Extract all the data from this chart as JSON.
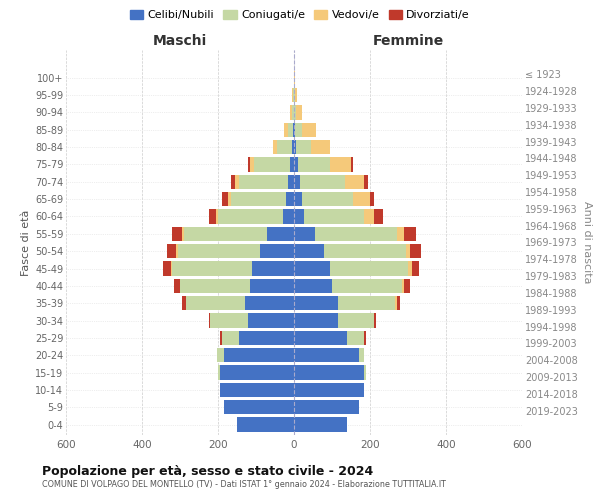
{
  "age_groups": [
    "0-4",
    "5-9",
    "10-14",
    "15-19",
    "20-24",
    "25-29",
    "30-34",
    "35-39",
    "40-44",
    "45-49",
    "50-54",
    "55-59",
    "60-64",
    "65-69",
    "70-74",
    "75-79",
    "80-84",
    "85-89",
    "90-94",
    "95-99",
    "100+"
  ],
  "birth_years": [
    "2019-2023",
    "2014-2018",
    "2009-2013",
    "2004-2008",
    "1999-2003",
    "1994-1998",
    "1989-1993",
    "1984-1988",
    "1979-1983",
    "1974-1978",
    "1969-1973",
    "1964-1968",
    "1959-1963",
    "1954-1958",
    "1949-1953",
    "1944-1948",
    "1939-1943",
    "1934-1938",
    "1929-1933",
    "1924-1928",
    "≤ 1923"
  ],
  "males": {
    "celibi": [
      150,
      185,
      195,
      195,
      185,
      145,
      120,
      130,
      115,
      110,
      90,
      70,
      30,
      20,
      15,
      10,
      5,
      2,
      0,
      0,
      0
    ],
    "coniugati": [
      0,
      0,
      0,
      5,
      18,
      45,
      100,
      155,
      185,
      210,
      215,
      220,
      170,
      145,
      130,
      95,
      40,
      15,
      5,
      2,
      0
    ],
    "vedovi": [
      0,
      0,
      0,
      0,
      0,
      0,
      0,
      0,
      0,
      5,
      5,
      5,
      5,
      10,
      10,
      10,
      10,
      10,
      5,
      2,
      0
    ],
    "divorziati": [
      0,
      0,
      0,
      0,
      0,
      5,
      5,
      10,
      15,
      20,
      25,
      25,
      20,
      15,
      10,
      5,
      0,
      0,
      0,
      0,
      0
    ]
  },
  "females": {
    "nubili": [
      140,
      170,
      185,
      185,
      170,
      140,
      115,
      115,
      100,
      95,
      80,
      55,
      25,
      20,
      15,
      10,
      5,
      2,
      0,
      0,
      0
    ],
    "coniugate": [
      0,
      0,
      0,
      5,
      15,
      45,
      95,
      150,
      185,
      205,
      215,
      215,
      160,
      135,
      120,
      85,
      40,
      20,
      5,
      2,
      0
    ],
    "vedove": [
      0,
      0,
      0,
      0,
      0,
      0,
      0,
      5,
      5,
      10,
      10,
      20,
      25,
      45,
      50,
      55,
      50,
      35,
      15,
      5,
      2
    ],
    "divorziate": [
      0,
      0,
      0,
      0,
      0,
      5,
      5,
      10,
      15,
      20,
      30,
      30,
      25,
      10,
      10,
      5,
      0,
      0,
      0,
      0,
      0
    ]
  },
  "colors": {
    "celibi": "#4472c4",
    "coniugati": "#c5d8a4",
    "vedovi": "#f5c97a",
    "divorziati": "#c0392b"
  },
  "title": "Popolazione per età, sesso e stato civile - 2024",
  "subtitle": "COMUNE DI VOLPAGO DEL MONTELLO (TV) - Dati ISTAT 1° gennaio 2024 - Elaborazione TUTTITALIA.IT",
  "xlabel_left": "Maschi",
  "xlabel_right": "Femmine",
  "ylabel_left": "Fasce di età",
  "ylabel_right": "Anni di nascita",
  "xlim": 600,
  "legend_labels": [
    "Celibi/Nubili",
    "Coniugati/e",
    "Vedovi/e",
    "Divorziati/e"
  ]
}
